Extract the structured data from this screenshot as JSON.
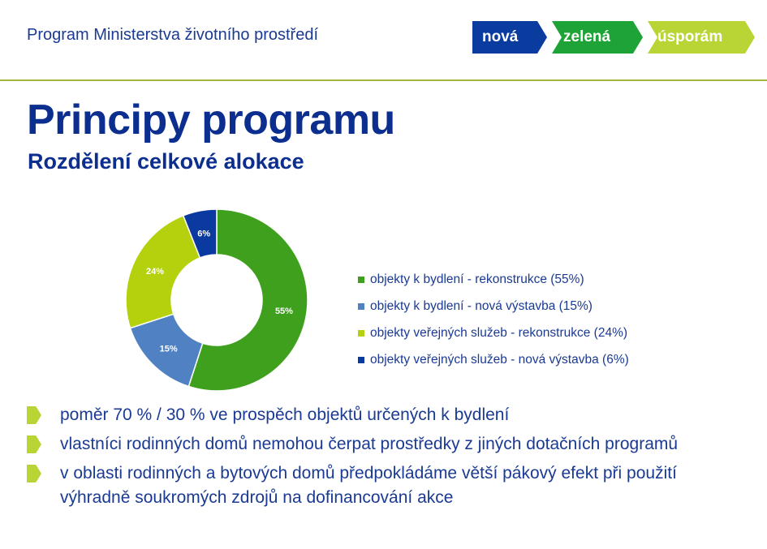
{
  "header": {
    "program_title": "Program Ministerstva životního prostředí",
    "logo": [
      {
        "label": "nová",
        "color": "#0a3b9e"
      },
      {
        "label": "zelená",
        "color": "#1ea336"
      },
      {
        "label": "úsporám",
        "color": "#b8d435"
      }
    ],
    "divider_color": "#a0b840"
  },
  "main": {
    "title": "Principy programu",
    "subtitle": "Rozdělení celkové alokace"
  },
  "chart_data": {
    "type": "pie",
    "variant": "donut",
    "legend_position": "right",
    "slices": [
      {
        "label": "objekty k bydlení - rekonstrukce (55%)",
        "value": 55,
        "data_label": "55%",
        "color": "#3ea01c"
      },
      {
        "label": "objekty k bydlení - nová výstavba (15%)",
        "value": 15,
        "data_label": "15%",
        "color": "#4f81c3"
      },
      {
        "label": "objekty veřejných služeb - rekonstrukce (24%)",
        "value": 24,
        "data_label": "24%",
        "color": "#b5d10e"
      },
      {
        "label": "objekty veřejných služeb - nová výstavba (6%)",
        "value": 6,
        "data_label": "6%",
        "color": "#0a3aa0"
      }
    ]
  },
  "bullets": [
    "poměr 70 % / 30 % ve prospěch objektů určených k bydlení",
    "vlastníci rodinných domů nemohou čerpat prostředky z jiných dotačních programů",
    "v oblasti rodinných a bytových domů předpokládáme větší pákový efekt při použití výhradně soukromých zdrojů na dofinancování akce"
  ],
  "icons": {
    "bullet": "arrow-bullet-icon"
  }
}
